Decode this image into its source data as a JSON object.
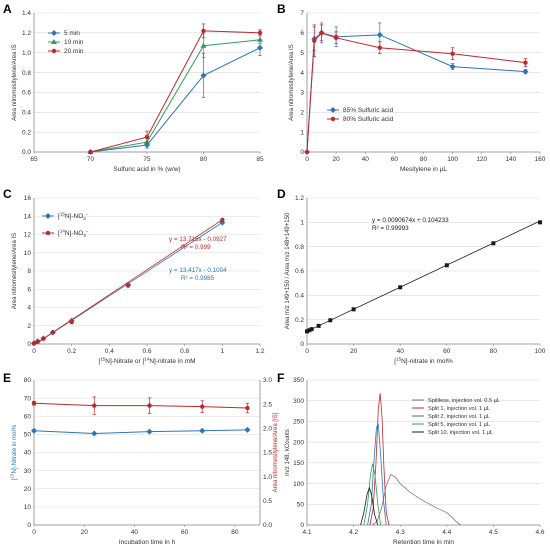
{
  "panels": [
    {
      "letter": "A",
      "type": "line",
      "xlabel": "Sulfuric acid in % (w/w)",
      "ylabel": "Area nitromesitylene/Area IS",
      "xlim": [
        65,
        85
      ],
      "ylim": [
        0,
        1.4
      ],
      "xticks": [
        65,
        70,
        75,
        80,
        85
      ],
      "yticks": [
        0,
        0.2,
        0.4,
        0.6,
        0.8,
        1.0,
        1.2,
        1.4
      ],
      "xtickLabels": [
        "65",
        "70",
        "75",
        "80",
        "85"
      ],
      "ytickLabels": [
        "0.0",
        "0.2",
        "0.4",
        "0.6",
        "0.8",
        "1.0",
        "1.2",
        "1.4"
      ],
      "legend": {
        "position": "top-left"
      },
      "series": [
        {
          "name": "5 min",
          "color": "#2e75b6",
          "marker": "diamond",
          "x": [
            70,
            75,
            80,
            85
          ],
          "y": [
            0.0,
            0.07,
            0.77,
            1.05
          ],
          "err": [
            0.0,
            0.03,
            0.22,
            0.08
          ]
        },
        {
          "name": "10 min",
          "color": "#2ca05a",
          "marker": "triangle",
          "x": [
            70,
            75,
            80,
            85
          ],
          "y": [
            0.0,
            0.1,
            1.07,
            1.13
          ],
          "err": [
            0.0,
            0.04,
            0.12,
            0.04
          ]
        },
        {
          "name": "20 min",
          "color": "#c0272d",
          "marker": "circle",
          "x": [
            70,
            75,
            80,
            85
          ],
          "y": [
            0.0,
            0.15,
            1.22,
            1.2
          ],
          "err": [
            0.0,
            0.06,
            0.07,
            0.03
          ]
        }
      ]
    },
    {
      "letter": "B",
      "type": "line",
      "xlabel": "Mesitylene in µL",
      "ylabel": "Area nitromesitylene/Area IS",
      "xlim": [
        0,
        160
      ],
      "ylim": [
        0,
        7
      ],
      "xticks": [
        0,
        20,
        40,
        60,
        80,
        100,
        120,
        140,
        160
      ],
      "yticks": [
        0,
        1,
        2,
        3,
        4,
        5,
        6,
        7
      ],
      "xtickLabels": [
        "0",
        "20",
        "40",
        "60",
        "80",
        "100",
        "120",
        "140",
        "160"
      ],
      "ytickLabels": [
        "0",
        "1",
        "2",
        "3",
        "4",
        "5",
        "6",
        "7"
      ],
      "legend": {
        "position": "bottom-left"
      },
      "series": [
        {
          "name": "85% Sulfuric acid",
          "color": "#2e75b6",
          "marker": "diamond",
          "x": [
            0,
            5,
            10,
            20,
            50,
            100,
            150
          ],
          "y": [
            0,
            5.7,
            6.0,
            5.8,
            5.9,
            4.3,
            4.05
          ],
          "err": [
            0,
            0.6,
            0.5,
            0.5,
            0.6,
            0.15,
            0.1
          ]
        },
        {
          "name": "80% Sulfuric acid",
          "color": "#c0272d",
          "marker": "circle",
          "x": [
            0,
            5,
            10,
            20,
            50,
            100,
            150
          ],
          "y": [
            0,
            5.6,
            6.0,
            5.75,
            5.25,
            4.95,
            4.5
          ],
          "err": [
            0,
            0.8,
            0.4,
            0.3,
            0.3,
            0.3,
            0.2
          ]
        }
      ]
    },
    {
      "letter": "C",
      "type": "scatter",
      "xlabel": "[15N]-Nitrate or [14N]-nitrate in mM",
      "ylabel": "Area nitromesitylene/Area IS",
      "xlim": [
        0,
        1.2
      ],
      "ylim": [
        0,
        16
      ],
      "xticks": [
        0,
        0.2,
        0.4,
        0.6,
        0.8,
        1.0,
        1.2
      ],
      "yticks": [
        0,
        2,
        4,
        6,
        8,
        10,
        12,
        14,
        16
      ],
      "xtickLabels": [
        "0",
        "0.2",
        "0.4",
        "0.6",
        "0.8",
        "1",
        "1.2"
      ],
      "ytickLabels": [
        "0",
        "2",
        "4",
        "6",
        "8",
        "10",
        "12",
        "14",
        "16"
      ],
      "legend": {
        "position": "top-left"
      },
      "series": [
        {
          "name": "[15N]-NO3-",
          "color": "#2e75b6",
          "marker": "diamond",
          "x": [
            0,
            0.02,
            0.05,
            0.1,
            0.2,
            0.5,
            1.0
          ],
          "y": [
            0.1,
            0.3,
            0.6,
            1.25,
            2.55,
            6.5,
            13.3
          ],
          "fit": {
            "slope": 13.417,
            "intercept": -0.1004
          }
        },
        {
          "name": "[14N]-NO3-",
          "color": "#c0272d",
          "marker": "circle",
          "x": [
            0,
            0.02,
            0.05,
            0.1,
            0.2,
            0.5,
            1.0
          ],
          "y": [
            0.05,
            0.25,
            0.6,
            1.3,
            2.4,
            6.4,
            13.6
          ],
          "fit": {
            "slope": 13.715,
            "intercept": -0.0927
          }
        }
      ],
      "annotations": [
        {
          "line1": "y = 13.715x - 0.0927",
          "line2": "R² = 0.999",
          "color": "#c0272d"
        },
        {
          "line1": "y = 13.417x - 0.1004",
          "line2": "R² = 0.9985",
          "color": "#2e75b6"
        }
      ]
    },
    {
      "letter": "D",
      "type": "scatter",
      "xlabel": "[15N]-nitrate in mol%",
      "ylabel": "Area m/z 149+150 / Area m/z 148+149+150",
      "xlim": [
        0,
        100
      ],
      "ylim": [
        0,
        1.2
      ],
      "xticks": [
        0,
        20,
        40,
        60,
        80,
        100
      ],
      "yticks": [
        0,
        0.2,
        0.4,
        0.6,
        0.8,
        1.0,
        1.2
      ],
      "xtickLabels": [
        "0",
        "20",
        "40",
        "60",
        "80",
        "100"
      ],
      "ytickLabels": [
        "0",
        "0.2",
        "0.4",
        "0.6",
        "0.8",
        "1",
        "1.2"
      ],
      "series": [
        {
          "name": "",
          "color": "#1a1a1a",
          "marker": "square",
          "x": [
            0,
            1,
            2,
            5,
            10,
            20,
            40,
            60,
            80,
            100
          ],
          "y": [
            0.104,
            0.113,
            0.122,
            0.149,
            0.195,
            0.285,
            0.466,
            0.647,
            0.828,
            1.0
          ],
          "fit": {
            "slope": 0.0090674,
            "intercept": 0.104233
          }
        }
      ],
      "annotations": [
        {
          "line1": "y = 0.0090674x + 0.104233",
          "line2": "R² = 0.99993",
          "color": "#1a1a1a"
        }
      ]
    },
    {
      "letter": "E",
      "type": "scatter",
      "xlabel": "Incubation time in h",
      "ylabel": "[15N]-Nitrate in mol%",
      "y2label": "Area nitromesitylene/Area [IS]",
      "xlim": [
        0,
        90
      ],
      "ylim": [
        0,
        80
      ],
      "y2lim": [
        0,
        3.0
      ],
      "xticks": [
        0,
        20,
        40,
        60,
        80
      ],
      "yticks": [
        0,
        10,
        20,
        30,
        40,
        50,
        60,
        70,
        80
      ],
      "y2ticks": [
        0,
        0.5,
        1.0,
        1.5,
        2.0,
        2.5,
        3.0
      ],
      "xtickLabels": [
        "0",
        "20",
        "40",
        "60",
        "80"
      ],
      "ytickLabels": [
        "0",
        "10",
        "20",
        "30",
        "40",
        "50",
        "60",
        "70",
        "80"
      ],
      "y2tickLabels": [
        "0.0",
        "0.5",
        "1.0",
        "1.5",
        "2.0",
        "2.5",
        "3.0"
      ],
      "series": [
        {
          "name": "",
          "axis": "left",
          "color": "#2e75b6",
          "marker": "diamond",
          "x": [
            0,
            24,
            46,
            67,
            85
          ],
          "y": [
            52,
            50.5,
            51.5,
            52,
            52.5
          ],
          "err": [
            0.6,
            0.6,
            0.6,
            0.6,
            0.6
          ]
        },
        {
          "name": "",
          "axis": "right",
          "color": "#c0272d",
          "marker": "circle",
          "x": [
            0,
            24,
            46,
            67,
            85
          ],
          "y": [
            2.52,
            2.47,
            2.47,
            2.45,
            2.42
          ],
          "err": [
            0.04,
            0.18,
            0.16,
            0.12,
            0.1
          ]
        }
      ]
    },
    {
      "letter": "F",
      "type": "line",
      "xlabel": "Retention time in min",
      "ylabel": "m/z 148, kCounts",
      "xlim": [
        4.1,
        4.6
      ],
      "ylim": [
        0,
        350
      ],
      "xticks": [
        4.1,
        4.2,
        4.3,
        4.4,
        4.5,
        4.6
      ],
      "yticks": [
        0,
        50,
        100,
        150,
        200,
        250,
        300,
        350
      ],
      "xtickLabels": [
        "4.1",
        "4.2",
        "4.3",
        "4.4",
        "4.5",
        "4.6"
      ],
      "ytickLabels": [
        "0",
        "50",
        "100",
        "150",
        "200",
        "250",
        "300",
        "350"
      ],
      "legend": {
        "position": "top-right"
      },
      "series": [
        {
          "name": "Splitless, injection vol. 0.5 µL",
          "color": "#8a6d9e",
          "x": [
            4.24,
            4.25,
            4.26,
            4.27,
            4.28,
            4.29,
            4.3,
            4.32,
            4.34,
            4.36,
            4.38,
            4.4,
            4.41,
            4.42,
            4.43
          ],
          "y": [
            0,
            8,
            40,
            95,
            122,
            115,
            100,
            80,
            65,
            52,
            40,
            30,
            20,
            8,
            0
          ]
        },
        {
          "name": "Split 1, injection vol. 1 µL",
          "color": "#c0272d",
          "x": [
            4.235,
            4.242,
            4.248,
            4.253,
            4.257,
            4.261,
            4.265,
            4.27,
            4.276
          ],
          "y": [
            0,
            40,
            150,
            280,
            318,
            260,
            140,
            30,
            0
          ]
        },
        {
          "name": "Split 2, injection vol. 1 µL",
          "color": "#2e75b6",
          "x": [
            4.23,
            4.238,
            4.244,
            4.249,
            4.253,
            4.258,
            4.264,
            4.27
          ],
          "y": [
            0,
            50,
            160,
            235,
            245,
            170,
            60,
            0
          ]
        },
        {
          "name": "Split 5, injection vol. 1 µL",
          "color": "#2ca05a",
          "x": [
            4.222,
            4.23,
            4.236,
            4.241,
            4.246,
            4.252,
            4.258
          ],
          "y": [
            0,
            50,
            120,
            148,
            120,
            50,
            0
          ]
        },
        {
          "name": "Split 10, injection vol. 1 µL",
          "color": "#1a1a1a",
          "x": [
            4.215,
            4.222,
            4.229,
            4.234,
            4.239,
            4.245,
            4.252
          ],
          "y": [
            0,
            30,
            75,
            90,
            70,
            25,
            0
          ]
        }
      ]
    }
  ]
}
